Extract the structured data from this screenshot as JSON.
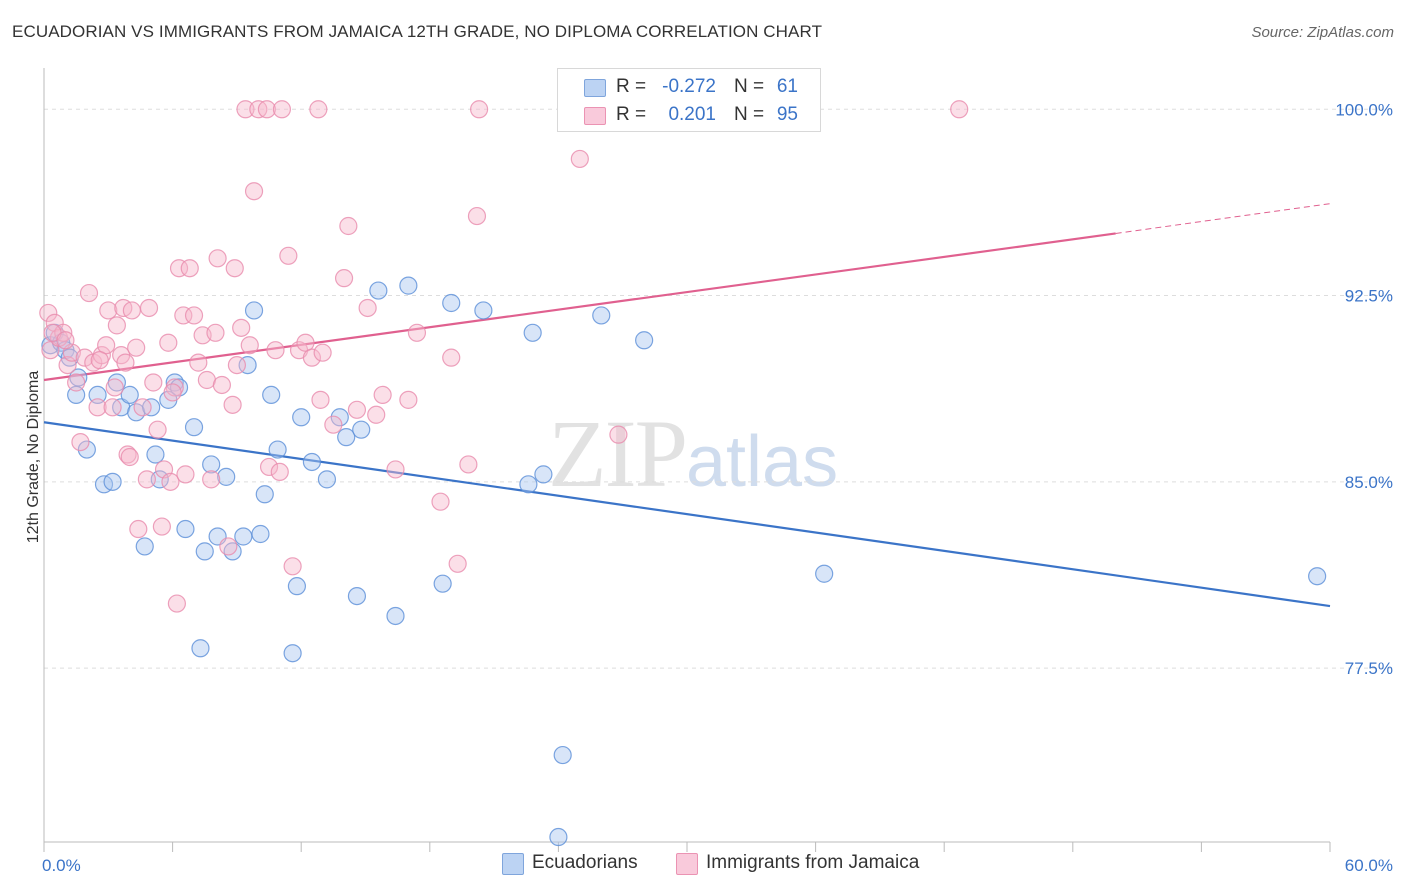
{
  "title": "ECUADORIAN VS IMMIGRANTS FROM JAMAICA 12TH GRADE, NO DIPLOMA CORRELATION CHART",
  "source": "Source: ZipAtlas.com",
  "watermark": {
    "zip": "ZIP",
    "atlas": "atlas"
  },
  "colors": {
    "blue": "#3b74c8",
    "blue_fill": "#a9c6f0",
    "pink": "#e0608f",
    "pink_fill": "#f6b7cd",
    "grid": "#dddddd",
    "axis_text": "#3b74c8"
  },
  "legend": {
    "rows": [
      {
        "r_label": "R =",
        "r_value": "-0.272",
        "n_label": "N =",
        "n_value": "61"
      },
      {
        "r_label": "R =",
        "r_value": "0.201",
        "n_label": "N =",
        "n_value": "95"
      }
    ]
  },
  "bottom_legend": {
    "series1": "Ecuadorians",
    "series2": "Immigrants from Jamaica"
  },
  "chart_data": {
    "type": "scatter",
    "xlabel": "",
    "ylabel": "12th Grade, No Diploma",
    "xlim": [
      0,
      60
    ],
    "ylim": [
      70.5,
      101.5
    ],
    "x_tick_labels": [
      "0.0%",
      "60.0%"
    ],
    "y_ticks": [
      77.5,
      85.0,
      92.5,
      100.0
    ],
    "y_tick_labels": [
      "77.5%",
      "85.0%",
      "92.5%",
      "100.0%"
    ],
    "grid": true,
    "legend_position": "top-center",
    "series": [
      {
        "name": "Ecuadorians",
        "color": "#3b74c8",
        "r": -0.272,
        "n": 61,
        "trend": {
          "x": [
            0,
            60
          ],
          "y": [
            87.4,
            80.0
          ]
        },
        "points": [
          [
            0.3,
            90.5
          ],
          [
            0.5,
            91.0
          ],
          [
            0.8,
            90.6
          ],
          [
            1.0,
            90.3
          ],
          [
            1.2,
            90.0
          ],
          [
            1.5,
            88.5
          ],
          [
            1.6,
            89.2
          ],
          [
            2.0,
            86.3
          ],
          [
            2.5,
            88.5
          ],
          [
            2.8,
            84.9
          ],
          [
            3.2,
            85.0
          ],
          [
            3.4,
            89.0
          ],
          [
            3.6,
            88.0
          ],
          [
            4.0,
            88.5
          ],
          [
            4.3,
            87.8
          ],
          [
            4.7,
            82.4
          ],
          [
            5.0,
            88.0
          ],
          [
            5.2,
            86.1
          ],
          [
            5.4,
            85.1
          ],
          [
            5.8,
            88.3
          ],
          [
            6.1,
            89.0
          ],
          [
            6.3,
            88.8
          ],
          [
            6.6,
            83.1
          ],
          [
            7.0,
            87.2
          ],
          [
            7.3,
            78.3
          ],
          [
            7.5,
            82.2
          ],
          [
            7.8,
            85.7
          ],
          [
            8.1,
            82.8
          ],
          [
            8.5,
            85.2
          ],
          [
            8.8,
            82.2
          ],
          [
            9.3,
            82.8
          ],
          [
            9.5,
            89.7
          ],
          [
            9.8,
            91.9
          ],
          [
            10.1,
            82.9
          ],
          [
            10.3,
            84.5
          ],
          [
            10.6,
            88.5
          ],
          [
            10.9,
            86.3
          ],
          [
            11.6,
            78.1
          ],
          [
            11.8,
            80.8
          ],
          [
            12.0,
            87.6
          ],
          [
            12.5,
            85.8
          ],
          [
            13.2,
            85.1
          ],
          [
            13.8,
            87.6
          ],
          [
            14.1,
            86.8
          ],
          [
            14.6,
            80.4
          ],
          [
            14.8,
            87.1
          ],
          [
            15.6,
            92.7
          ],
          [
            16.4,
            79.6
          ],
          [
            17.0,
            92.9
          ],
          [
            18.6,
            80.9
          ],
          [
            19.0,
            92.2
          ],
          [
            20.5,
            91.9
          ],
          [
            22.6,
            84.9
          ],
          [
            22.8,
            91.0
          ],
          [
            23.3,
            85.3
          ],
          [
            24.2,
            74.0
          ],
          [
            24.0,
            70.7
          ],
          [
            26.0,
            91.7
          ],
          [
            28.0,
            90.7
          ],
          [
            36.4,
            81.3
          ],
          [
            59.4,
            81.2
          ]
        ]
      },
      {
        "name": "Immigrants from Jamaica",
        "color": "#e0608f",
        "r": 0.201,
        "n": 95,
        "trend": {
          "x": [
            0,
            50
          ],
          "y": [
            89.1,
            95.0
          ]
        },
        "trend_dashed": {
          "x": [
            50,
            60
          ],
          "y": [
            95.0,
            96.2
          ]
        },
        "points": [
          [
            0.2,
            91.8
          ],
          [
            0.3,
            90.3
          ],
          [
            0.5,
            91.4
          ],
          [
            0.7,
            90.8
          ],
          [
            0.9,
            91.0
          ],
          [
            1.1,
            89.7
          ],
          [
            1.3,
            90.2
          ],
          [
            1.5,
            89.0
          ],
          [
            1.7,
            86.6
          ],
          [
            1.9,
            90.0
          ],
          [
            2.1,
            92.6
          ],
          [
            2.3,
            89.8
          ],
          [
            2.5,
            88.0
          ],
          [
            2.7,
            90.1
          ],
          [
            2.9,
            90.5
          ],
          [
            3.0,
            91.9
          ],
          [
            3.2,
            88.0
          ],
          [
            3.4,
            91.3
          ],
          [
            3.6,
            90.1
          ],
          [
            3.7,
            92.0
          ],
          [
            3.8,
            89.8
          ],
          [
            3.9,
            86.1
          ],
          [
            4.1,
            91.9
          ],
          [
            4.3,
            90.4
          ],
          [
            4.4,
            83.1
          ],
          [
            4.6,
            88.0
          ],
          [
            4.8,
            85.1
          ],
          [
            4.9,
            92.0
          ],
          [
            5.1,
            89.0
          ],
          [
            5.3,
            87.1
          ],
          [
            5.5,
            83.2
          ],
          [
            5.6,
            85.5
          ],
          [
            5.8,
            90.6
          ],
          [
            5.9,
            85.0
          ],
          [
            6.1,
            88.8
          ],
          [
            6.2,
            80.1
          ],
          [
            6.3,
            93.6
          ],
          [
            6.5,
            91.7
          ],
          [
            6.6,
            85.3
          ],
          [
            6.8,
            93.6
          ],
          [
            7.0,
            91.7
          ],
          [
            7.2,
            89.8
          ],
          [
            7.4,
            90.9
          ],
          [
            7.6,
            89.1
          ],
          [
            7.8,
            85.1
          ],
          [
            8.0,
            91.0
          ],
          [
            8.1,
            94.0
          ],
          [
            8.3,
            88.9
          ],
          [
            8.6,
            82.4
          ],
          [
            8.8,
            88.1
          ],
          [
            8.9,
            93.6
          ],
          [
            9.2,
            91.2
          ],
          [
            9.4,
            100.0
          ],
          [
            9.6,
            90.5
          ],
          [
            9.8,
            96.7
          ],
          [
            10.0,
            100.0
          ],
          [
            10.4,
            100.0
          ],
          [
            10.5,
            85.6
          ],
          [
            10.8,
            90.3
          ],
          [
            11.1,
            100.0
          ],
          [
            11.4,
            94.1
          ],
          [
            11.6,
            81.6
          ],
          [
            11.9,
            90.3
          ],
          [
            12.2,
            90.6
          ],
          [
            12.5,
            90.0
          ],
          [
            12.8,
            100.0
          ],
          [
            13.0,
            90.2
          ],
          [
            13.5,
            87.3
          ],
          [
            14.0,
            93.2
          ],
          [
            14.2,
            95.3
          ],
          [
            14.6,
            87.9
          ],
          [
            15.1,
            92.0
          ],
          [
            15.5,
            87.7
          ],
          [
            15.8,
            88.5
          ],
          [
            16.4,
            85.5
          ],
          [
            17.0,
            88.3
          ],
          [
            17.4,
            91.0
          ],
          [
            18.5,
            84.2
          ],
          [
            19.0,
            90.0
          ],
          [
            19.3,
            81.7
          ],
          [
            19.8,
            85.7
          ],
          [
            20.2,
            95.7
          ],
          [
            20.3,
            100.0
          ],
          [
            25.0,
            98.0
          ],
          [
            26.8,
            86.9
          ],
          [
            42.7,
            100.0
          ],
          [
            0.4,
            91.0
          ],
          [
            1.0,
            90.7
          ],
          [
            2.6,
            89.9
          ],
          [
            3.3,
            88.8
          ],
          [
            4.0,
            86.0
          ],
          [
            6.0,
            88.6
          ],
          [
            9.0,
            89.7
          ],
          [
            12.9,
            88.3
          ],
          [
            11.0,
            85.4
          ]
        ]
      }
    ]
  }
}
